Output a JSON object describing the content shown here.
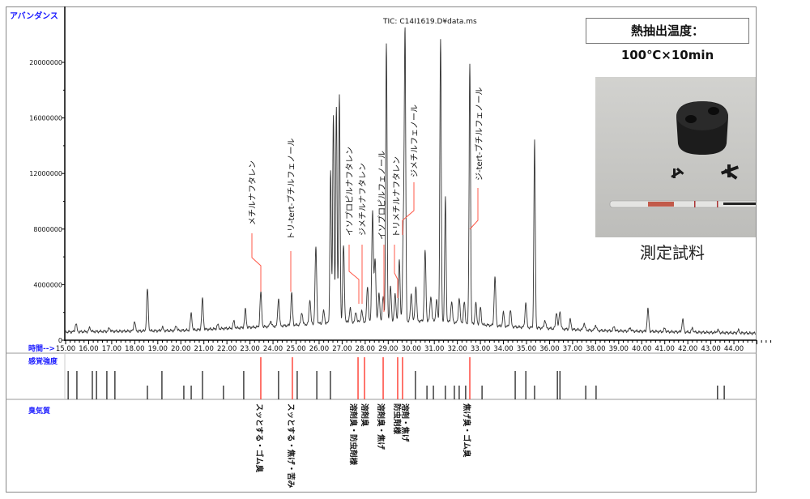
{
  "condition_label": "熱抽出温度：100℃×10min",
  "sample_caption": "測定試料",
  "chart_data": {
    "type": "line",
    "title": "TIC: C14I1619.D¥data.ms",
    "ylabel": "アバンダンス",
    "xlabel": "時間-->",
    "xlim": [
      15.0,
      45.0
    ],
    "ylim": [
      0,
      21500000
    ],
    "x_ticks": [
      "15.00",
      "16.00",
      "17.00",
      "18.00",
      "19.00",
      "20.00",
      "21.00",
      "22.00",
      "23.00",
      "24.00",
      "25.00",
      "26.00",
      "27.00",
      "28.00",
      "29.00",
      "30.00",
      "31.00",
      "32.00",
      "33.00",
      "34.00",
      "35.00",
      "36.00",
      "37.00",
      "38.00",
      "39.00",
      "40.00",
      "41.00",
      "42.00",
      "43.00",
      "44.00"
    ],
    "y_ticks": [
      "0",
      "4000000",
      "8000000",
      "12000000",
      "16000000",
      "20000000"
    ],
    "y_tick_values": [
      0,
      4000000,
      8000000,
      12000000,
      16000000,
      20000000
    ],
    "peaks": [
      [
        15.45,
        600000
      ],
      [
        16.05,
        300000
      ],
      [
        16.9,
        250000
      ],
      [
        17.99,
        700000
      ],
      [
        18.55,
        3000000
      ],
      [
        19.2,
        250000
      ],
      [
        19.8,
        350000
      ],
      [
        20.45,
        1200000
      ],
      [
        20.94,
        2200000
      ],
      [
        21.6,
        300000
      ],
      [
        22.3,
        500000
      ],
      [
        22.8,
        1300000
      ],
      [
        23.47,
        2500000
      ],
      [
        23.9,
        400000
      ],
      [
        24.24,
        2000000
      ],
      [
        24.81,
        2300000
      ],
      [
        25.25,
        900000
      ],
      [
        25.6,
        1800000
      ],
      [
        25.86,
        5500000
      ],
      [
        26.2,
        900000
      ],
      [
        26.5,
        11000000
      ],
      [
        26.62,
        15000000
      ],
      [
        26.75,
        15500000
      ],
      [
        26.88,
        16300000
      ],
      [
        27.06,
        5500000
      ],
      [
        27.35,
        1000000
      ],
      [
        27.6,
        700000
      ],
      [
        27.85,
        800000
      ],
      [
        28.1,
        2500000
      ],
      [
        28.32,
        8000000
      ],
      [
        28.43,
        4500000
      ],
      [
        28.6,
        2000000
      ],
      [
        28.78,
        1800000
      ],
      [
        28.92,
        20000000
      ],
      [
        29.1,
        2500000
      ],
      [
        29.3,
        2000000
      ],
      [
        29.48,
        4500000
      ],
      [
        29.73,
        20200000
      ],
      [
        29.66,
        7000000
      ],
      [
        30.0,
        2000000
      ],
      [
        30.2,
        2500000
      ],
      [
        30.6,
        5000000
      ],
      [
        30.85,
        1800000
      ],
      [
        31.1,
        1500000
      ],
      [
        31.27,
        20300000
      ],
      [
        31.48,
        9000000
      ],
      [
        31.75,
        1500000
      ],
      [
        32.08,
        1800000
      ],
      [
        32.3,
        1500000
      ],
      [
        32.54,
        18700000
      ],
      [
        32.8,
        1500000
      ],
      [
        33.0,
        1200000
      ],
      [
        33.63,
        3500000
      ],
      [
        34.0,
        1000000
      ],
      [
        34.3,
        1200000
      ],
      [
        34.97,
        1800000
      ],
      [
        35.35,
        13500000
      ],
      [
        35.8,
        600000
      ],
      [
        36.3,
        1200000
      ],
      [
        36.45,
        1300000
      ],
      [
        36.9,
        700000
      ],
      [
        37.5,
        500000
      ],
      [
        38.0,
        400000
      ],
      [
        38.8,
        300000
      ],
      [
        39.5,
        250000
      ],
      [
        40.27,
        1600000
      ],
      [
        41.0,
        250000
      ],
      [
        41.78,
        900000
      ],
      [
        42.2,
        300000
      ],
      [
        43.3,
        200000
      ],
      [
        44.2,
        200000
      ]
    ],
    "baseline": [
      [
        15.0,
        600000
      ],
      [
        20.0,
        700000
      ],
      [
        24.0,
        1000000
      ],
      [
        27.0,
        1300000
      ],
      [
        31.0,
        1400000
      ],
      [
        34.0,
        1000000
      ],
      [
        38.0,
        700000
      ],
      [
        45.0,
        500000
      ]
    ],
    "compound_annotations": [
      {
        "name": "メチルナフタレン",
        "time": 23.47
      },
      {
        "name": "トリ-tert-ブチルフェノール",
        "time": 24.81
      },
      {
        "name": "イソプロピルナフタレン",
        "time": 27.69
      },
      {
        "name": "ジメチルナフタレン",
        "time": 27.97
      },
      {
        "name": "イソプロピルフェノール",
        "time": 28.78
      },
      {
        "name": "トリメチルナフタレン",
        "time": 29.41
      },
      {
        "name": "ジメチルフェノール",
        "time": 29.62
      },
      {
        "name": "ジ-tert-ブチルフェノール",
        "time": 32.54
      }
    ],
    "sensory_label": "感覚強度",
    "sensory_intensity": [
      [
        15.11,
        2
      ],
      [
        15.49,
        2
      ],
      [
        16.16,
        2
      ],
      [
        16.34,
        2
      ],
      [
        16.79,
        2
      ],
      [
        17.14,
        2
      ],
      [
        18.55,
        1
      ],
      [
        19.18,
        2
      ],
      [
        20.13,
        1
      ],
      [
        20.45,
        1
      ],
      [
        20.94,
        2
      ],
      [
        21.85,
        1
      ],
      [
        22.73,
        2
      ],
      [
        23.47,
        3
      ],
      [
        24.24,
        2
      ],
      [
        24.84,
        3
      ],
      [
        25.05,
        2
      ],
      [
        25.9,
        2
      ],
      [
        26.49,
        2
      ],
      [
        27.69,
        3
      ],
      [
        27.97,
        3
      ],
      [
        28.78,
        3
      ],
      [
        29.41,
        3
      ],
      [
        29.62,
        3
      ],
      [
        30.18,
        2
      ],
      [
        30.68,
        1
      ],
      [
        30.96,
        1
      ],
      [
        31.48,
        1
      ],
      [
        31.87,
        1
      ],
      [
        32.08,
        1
      ],
      [
        32.36,
        1
      ],
      [
        32.54,
        3
      ],
      [
        33.07,
        1
      ],
      [
        34.51,
        2
      ],
      [
        34.97,
        2
      ],
      [
        35.35,
        1
      ],
      [
        36.34,
        2
      ],
      [
        36.45,
        2
      ],
      [
        37.57,
        1
      ],
      [
        38.02,
        1
      ],
      [
        43.29,
        1
      ],
      [
        43.58,
        1
      ]
    ],
    "odor_label": "臭気質",
    "odor_quality": [
      {
        "time": 23.47,
        "text": "スッとする・ゴム臭"
      },
      {
        "time": 24.84,
        "text": "スッとする・焦げ・苦み"
      },
      {
        "time": 27.69,
        "text": "溶剤臭・防虫剤様"
      },
      {
        "time": 27.97,
        "text": "溶剤臭"
      },
      {
        "time": 28.78,
        "text": "溶剤臭・焦げ"
      },
      {
        "time": 29.41,
        "text": "防虫剤様"
      },
      {
        "time": 29.62,
        "text": "溶剤・焦げ"
      },
      {
        "time": 32.54,
        "text": "焦げ臭・ゴム臭"
      }
    ],
    "colors": {
      "trace": "#333333",
      "highlight": "#ff3b30",
      "label_blue": "#1a1aff",
      "axis": "#000000"
    }
  }
}
